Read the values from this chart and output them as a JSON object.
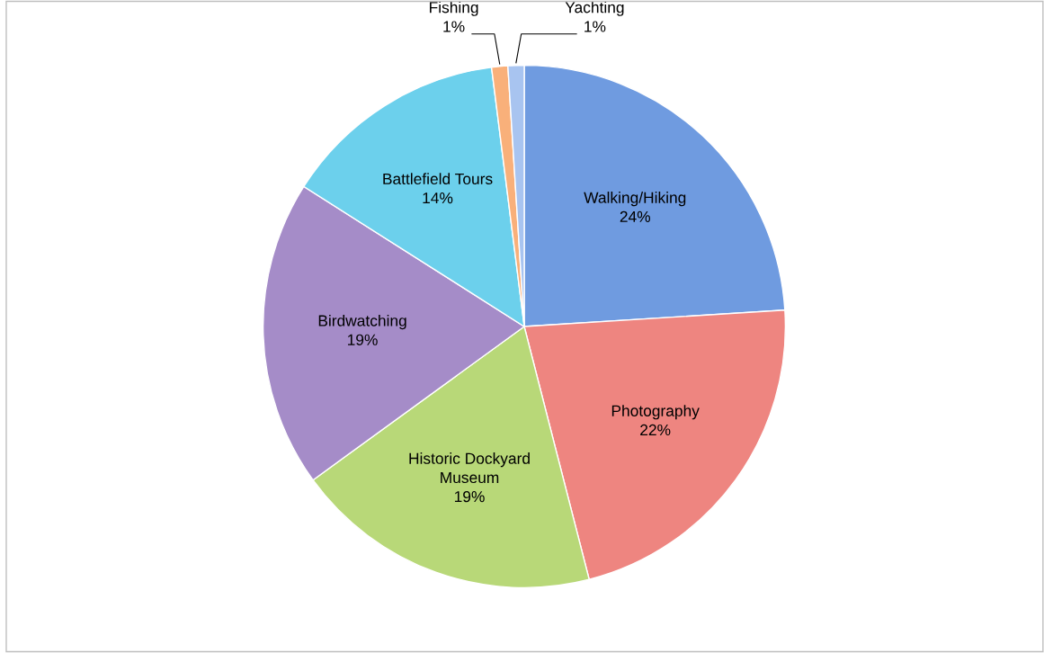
{
  "chart_data": {
    "type": "pie",
    "categories": [
      "Walking/Hiking",
      "Photography",
      "Historic Dockyard Museum",
      "Birdwatching",
      "Battlefield Tours",
      "Fishing",
      "Yachting"
    ],
    "values": [
      24,
      22,
      19,
      19,
      14,
      1,
      1
    ],
    "colors": [
      "#6f9be0",
      "#ee8580",
      "#b8d878",
      "#a58cc8",
      "#6cd0ec",
      "#f9b07a",
      "#a8c4f0"
    ],
    "value_labels": [
      "24%",
      "22%",
      "19%",
      "19%",
      "14%",
      "1%",
      "1%"
    ]
  }
}
